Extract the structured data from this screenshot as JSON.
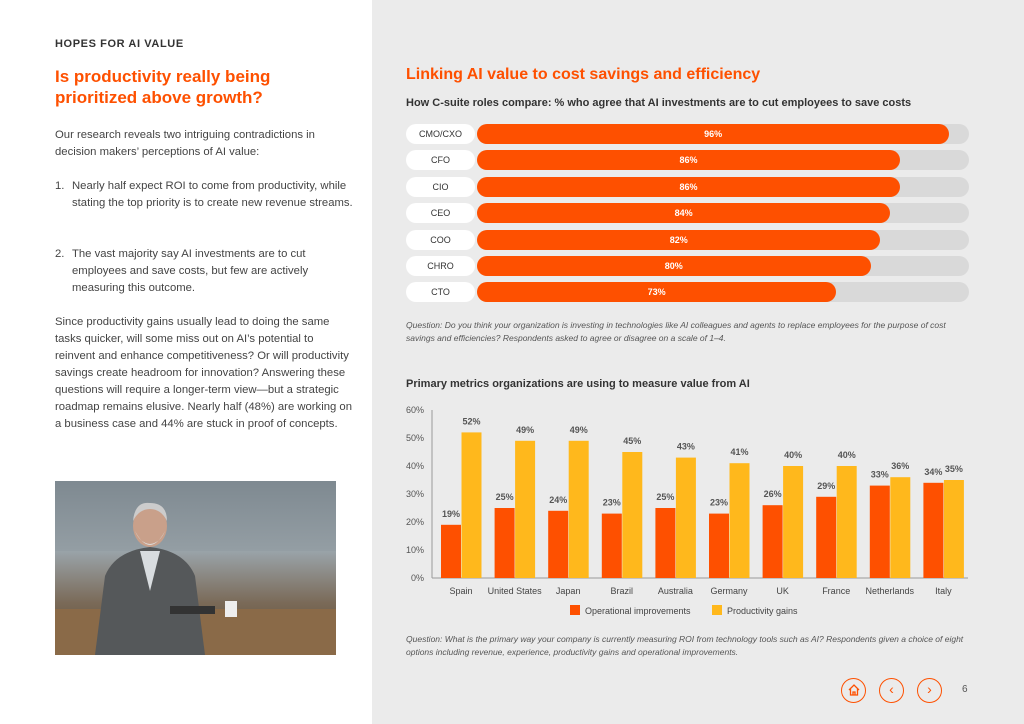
{
  "left": {
    "eyebrow": "HOPES FOR AI VALUE",
    "title": "Is productivity really being prioritized above growth?",
    "intro": "Our research reveals two intriguing contradictions in decision makers’ perceptions of AI value:",
    "list": [
      {
        "n": "1.",
        "text": "Nearly half expect ROI to come from productivity, while stating the top priority is to create new revenue streams."
      },
      {
        "n": "2.",
        "text": "The vast majority say AI investments are to cut employees and save costs, but few are actively measuring this outcome."
      }
    ],
    "para": "Since productivity gains usually lead to doing the same tasks quicker, will some miss out on AI’s potential to reinvent and enhance competitiveness? Or will productivity savings create headroom for innovation? Answering these questions will require a longer-term view—but a strategic roadmap remains elusive. Nearly half (48%) are working on a business case and 44% are stuck in proof of concepts."
  },
  "right": {
    "title": "Linking AI value to cost savings and efficiency",
    "question1": "Question: Do you think your organization is investing in technologies like AI colleagues and agents to replace employees for the purpose of cost savings and efficiencies? Respondents asked to agree or disagree on a scale of 1–4.",
    "question2": "Question: What is the primary way your company is currently measuring ROI from technology tools such as AI? Respondents given a choice of eight options including revenue, experience, productivity gains and operational improvements."
  },
  "chart_data": [
    {
      "type": "bar",
      "orientation": "horizontal",
      "title": "How C-suite roles compare: % who agree that AI investments are to cut employees to save costs",
      "categories": [
        "CMO/CXO",
        "CFO",
        "CIO",
        "CEO",
        "COO",
        "CHRO",
        "CTO"
      ],
      "values": [
        96,
        86,
        86,
        84,
        82,
        80,
        73
      ],
      "labels": [
        "96%",
        "86%",
        "86%",
        "84%",
        "82%",
        "80%",
        "73%"
      ],
      "xlim": [
        0,
        100
      ],
      "colors": {
        "fill": "#fe5000",
        "track": "#d9d9d9"
      }
    },
    {
      "type": "bar",
      "title": "Primary metrics organizations are using to measure value from AI",
      "categories": [
        "Spain",
        "United States",
        "Japan",
        "Brazil",
        "Australia",
        "Germany",
        "UK",
        "France",
        "Netherlands",
        "Italy"
      ],
      "series": [
        {
          "name": "Operational improvements",
          "values": [
            19,
            25,
            24,
            23,
            25,
            23,
            26,
            29,
            33,
            34
          ],
          "color": "#fe5000"
        },
        {
          "name": "Productivity gains",
          "values": [
            52,
            49,
            49,
            45,
            43,
            41,
            40,
            40,
            36,
            35
          ],
          "color": "#ffb81c"
        }
      ],
      "ylim": [
        0,
        60
      ],
      "yticks": [
        "0%",
        "10%",
        "20%",
        "30%",
        "40%",
        "50%",
        "60%"
      ],
      "legend": "bottom"
    }
  ],
  "footer": {
    "page": "6",
    "icons": [
      "home-icon",
      "chevron-left-icon",
      "chevron-right-icon"
    ],
    "accent": "#fe5000"
  }
}
